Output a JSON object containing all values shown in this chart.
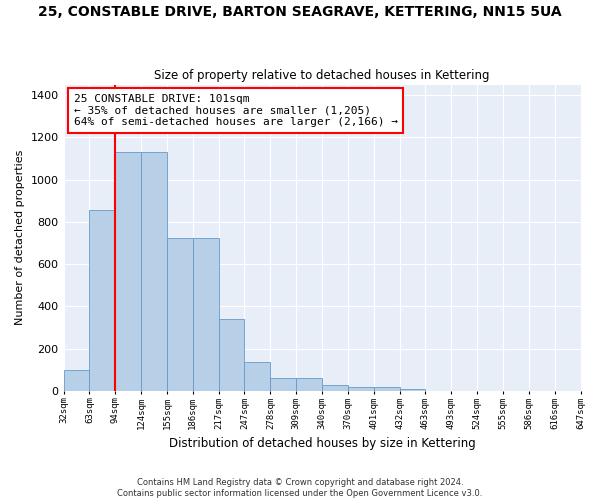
{
  "title": "25, CONSTABLE DRIVE, BARTON SEAGRAVE, KETTERING, NN15 5UA",
  "subtitle": "Size of property relative to detached houses in Kettering",
  "xlabel": "Distribution of detached houses by size in Kettering",
  "ylabel": "Number of detached properties",
  "bar_values": [
    100,
    855,
    1130,
    1130,
    725,
    725,
    340,
    135,
    60,
    60,
    30,
    20,
    20,
    10,
    0,
    0,
    0,
    0,
    0,
    0
  ],
  "categories": [
    "32sqm",
    "63sqm",
    "94sqm",
    "124sqm",
    "155sqm",
    "186sqm",
    "217sqm",
    "247sqm",
    "278sqm",
    "309sqm",
    "340sqm",
    "370sqm",
    "401sqm",
    "432sqm",
    "463sqm",
    "493sqm",
    "524sqm",
    "555sqm",
    "586sqm",
    "616sqm",
    "647sqm"
  ],
  "bar_color": "#b8cfe8",
  "bar_edge_color": "#6699cc",
  "annotation_box_text": "25 CONSTABLE DRIVE: 101sqm\n← 35% of detached houses are smaller (1,205)\n64% of semi-detached houses are larger (2,166) →",
  "annotation_box_color": "red",
  "redline_bin": 2,
  "ylim": [
    0,
    1450
  ],
  "yticks": [
    0,
    200,
    400,
    600,
    800,
    1000,
    1200,
    1400
  ],
  "bg_color": "#e8eef8",
  "footer_line1": "Contains HM Land Registry data © Crown copyright and database right 2024.",
  "footer_line2": "Contains public sector information licensed under the Open Government Licence v3.0."
}
